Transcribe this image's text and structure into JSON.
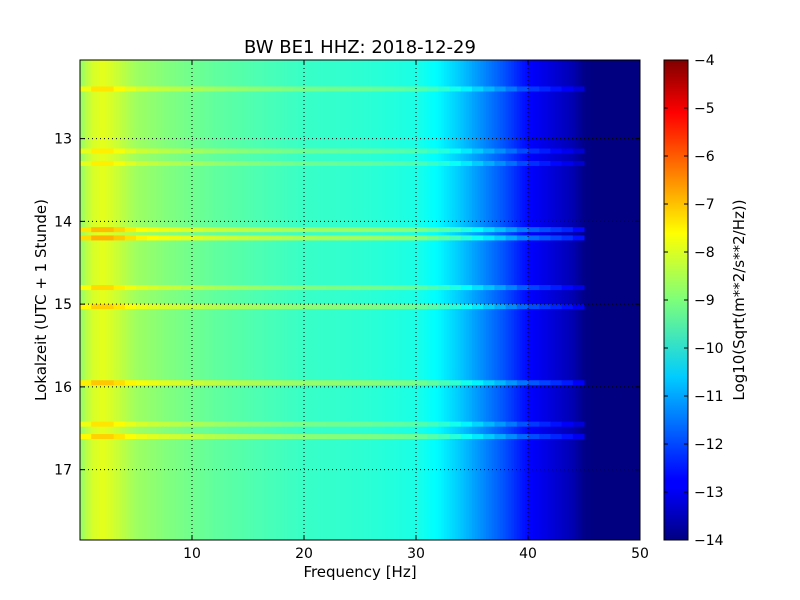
{
  "chart_data": {
    "type": "heatmap",
    "title": "BW BE1 HHZ: 2018-12-29",
    "xlabel": "Frequency [Hz]",
    "ylabel": "Lokalzeit (UTC + 1 Stunde)",
    "xlim": [
      0,
      50
    ],
    "ylim": [
      12.05,
      17.85
    ],
    "y_inverted": true,
    "grid": true,
    "x_ticks": [
      10,
      20,
      30,
      40,
      50
    ],
    "y_ticks": [
      13,
      14,
      15,
      16,
      17
    ],
    "colormap": "jet",
    "colorbar": {
      "label": "Log10(Sqrt(m**2/s**2/Hz))",
      "range": [
        -14,
        -4
      ],
      "ticks": [
        -4,
        -5,
        -6,
        -7,
        -8,
        -9,
        -10,
        -11,
        -12,
        -13,
        -14
      ]
    },
    "spectrum_profile": {
      "frequency_hz": [
        0,
        1,
        2,
        3,
        5,
        8,
        12,
        16,
        20,
        25,
        30,
        32,
        34,
        36,
        38,
        40,
        42,
        44,
        45,
        46,
        50
      ],
      "log_amplitude": [
        -8.8,
        -8.2,
        -8.0,
        -8.2,
        -8.7,
        -9.0,
        -9.3,
        -9.5,
        -9.7,
        -9.8,
        -10.0,
        -10.3,
        -10.8,
        -11.4,
        -12.0,
        -12.7,
        -13.1,
        -13.5,
        -13.9,
        -14.0,
        -14.0
      ]
    },
    "bright_bands": [
      {
        "time": 12.4,
        "delta": 0.6
      },
      {
        "time": 13.15,
        "delta": 0.5
      },
      {
        "time": 13.3,
        "delta": 0.5
      },
      {
        "time": 14.1,
        "delta": 1.0
      },
      {
        "time": 14.2,
        "delta": 1.1
      },
      {
        "time": 14.8,
        "delta": 0.7
      },
      {
        "time": 15.03,
        "delta": 0.8
      },
      {
        "time": 15.95,
        "delta": 0.9
      },
      {
        "time": 16.45,
        "delta": 0.6
      },
      {
        "time": 16.6,
        "delta": 0.8
      }
    ]
  }
}
